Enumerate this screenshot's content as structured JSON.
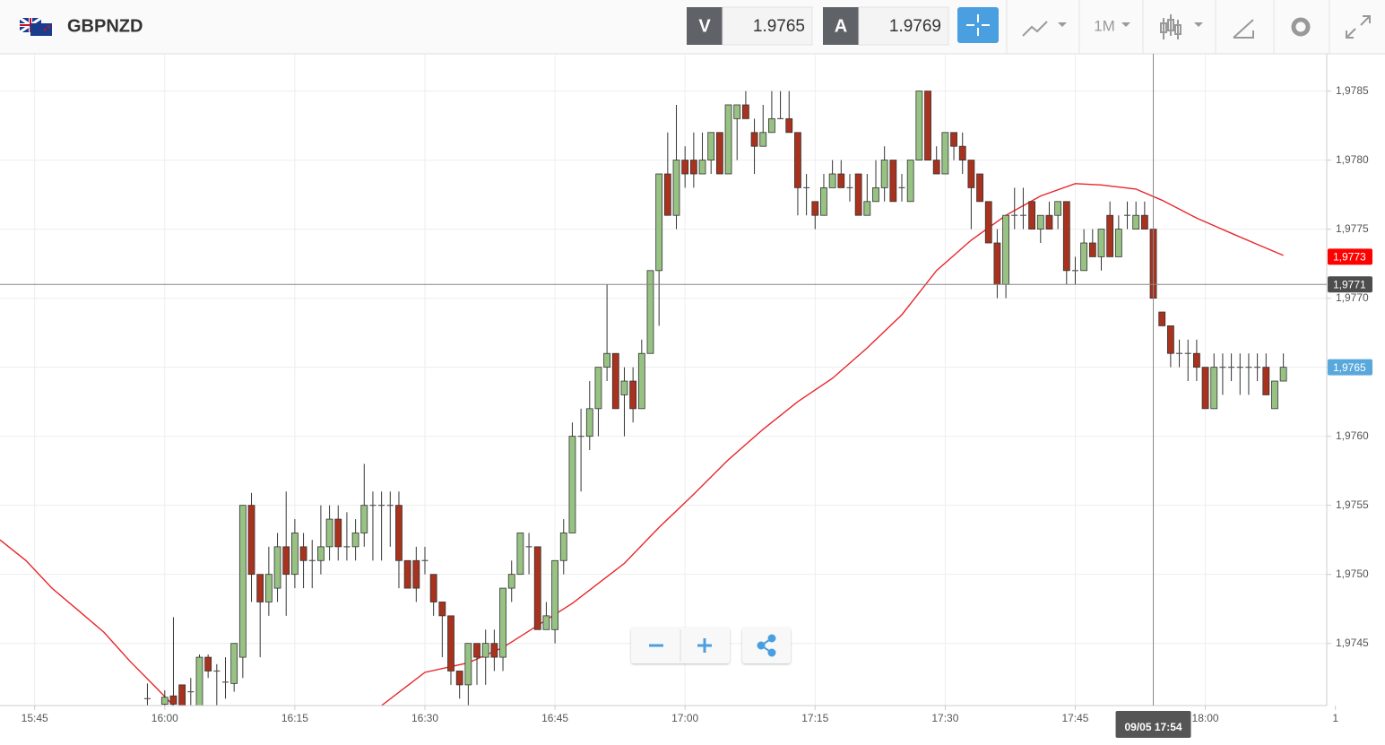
{
  "header": {
    "symbol": "GBPNZD",
    "bid_label": "V",
    "bid": 1.9765,
    "ask_label": "A",
    "ask": 1.9769,
    "timeframe": "1M"
  },
  "chart_data": {
    "type": "candlestick",
    "x": [
      "15:58",
      "16:00",
      "16:01",
      "16:02",
      "16:03",
      "16:04",
      "16:05",
      "16:06",
      "16:07",
      "16:08",
      "16:09",
      "16:10",
      "16:11",
      "16:12",
      "16:13",
      "16:14",
      "16:15",
      "16:16",
      "16:17",
      "16:18",
      "16:19",
      "16:20",
      "16:21",
      "16:22",
      "16:23",
      "16:24",
      "16:25",
      "16:26",
      "16:27",
      "16:28",
      "16:29",
      "16:30",
      "16:31",
      "16:32",
      "16:33",
      "16:34",
      "16:35",
      "16:36",
      "16:37",
      "16:38",
      "16:39",
      "16:40",
      "16:41",
      "16:42",
      "16:43",
      "16:44",
      "16:45",
      "16:46",
      "16:47",
      "16:48",
      "16:49",
      "16:50",
      "16:51",
      "16:52",
      "16:53",
      "16:54",
      "16:55",
      "16:56",
      "16:57",
      "16:58",
      "16:59",
      "17:00",
      "17:01",
      "17:02",
      "17:03",
      "17:04",
      "17:05",
      "17:06",
      "17:07",
      "17:08",
      "17:09",
      "17:10",
      "17:11",
      "17:12",
      "17:13",
      "17:14",
      "17:15",
      "17:16",
      "17:17",
      "17:18",
      "17:19",
      "17:20",
      "17:21",
      "17:22",
      "17:23",
      "17:24",
      "17:25",
      "17:26",
      "17:27",
      "17:28",
      "17:29",
      "17:30",
      "17:31",
      "17:32",
      "17:33",
      "17:34",
      "17:35",
      "17:36",
      "17:37",
      "17:38",
      "17:39",
      "17:40",
      "17:41",
      "17:42",
      "17:43",
      "17:44",
      "17:45",
      "17:46",
      "17:47",
      "17:48",
      "17:49",
      "17:50",
      "17:51",
      "17:52",
      "17:53",
      "17:54",
      "17:55",
      "17:56",
      "17:57",
      "17:58",
      "17:59",
      "18:00",
      "18:01",
      "18:02",
      "18:03",
      "18:04",
      "18:05",
      "18:06",
      "18:07",
      "18:08",
      "18:09"
    ],
    "open": [
      1.9741,
      1.97406,
      1.97412,
      1.9742,
      1.97415,
      1.97405,
      1.9744,
      1.9743,
      1.97422,
      1.97421,
      1.9744,
      1.9755,
      1.975,
      1.9748,
      1.9749,
      1.9752,
      1.975,
      1.9752,
      1.9751,
      1.9751,
      1.9752,
      1.9754,
      1.9752,
      1.9752,
      1.9753,
      1.9755,
      1.9755,
      1.9755,
      1.9755,
      1.9751,
      1.9751,
      1.9751,
      1.975,
      1.9748,
      1.9747,
      1.9743,
      1.9742,
      1.9745,
      1.9744,
      1.9745,
      1.9744,
      1.9749,
      1.975,
      1.9752,
      1.9752,
      1.9746,
      1.9746,
      1.9751,
      1.9753,
      1.976,
      1.976,
      1.9762,
      1.9765,
      1.9766,
      1.9763,
      1.9764,
      1.9762,
      1.9766,
      1.9772,
      1.9779,
      1.9776,
      1.978,
      1.978,
      1.9779,
      1.978,
      1.9782,
      1.9779,
      1.9783,
      1.9784,
      1.9782,
      1.9781,
      1.9782,
      1.9783,
      1.9783,
      1.9782,
      1.9778,
      1.9777,
      1.9776,
      1.9778,
      1.9779,
      1.9778,
      1.9779,
      1.9776,
      1.9777,
      1.9778,
      1.978,
      1.9778,
      1.9777,
      1.978,
      1.9785,
      1.978,
      1.9779,
      1.9782,
      1.9781,
      1.978,
      1.9779,
      1.9777,
      1.9774,
      1.9771,
      1.9776,
      1.9776,
      1.9777,
      1.9775,
      1.9776,
      1.9776,
      1.9777,
      1.9772,
      1.9772,
      1.9774,
      1.9773,
      1.9776,
      1.9773,
      1.9776,
      1.9775,
      1.9776,
      1.9775,
      1.9769,
      1.9768,
      1.9766,
      1.9766,
      1.9766,
      1.9765,
      1.9762,
      1.9765,
      1.9765,
      1.9765,
      1.9765,
      1.9765,
      1.9765,
      1.9762,
      1.9764
    ],
    "high": [
      1.97421,
      1.97416,
      1.97469,
      1.9742,
      1.97425,
      1.97442,
      1.97442,
      1.97435,
      1.9744,
      1.9745,
      1.9755,
      1.97559,
      1.975,
      1.9752,
      1.9753,
      1.9756,
      1.9754,
      1.9753,
      1.97525,
      1.9755,
      1.9755,
      1.9755,
      1.97545,
      1.9754,
      1.9758,
      1.9756,
      1.9756,
      1.9756,
      1.9756,
      1.9751,
      1.9752,
      1.9752,
      1.975,
      1.9748,
      1.9747,
      1.9743,
      1.9745,
      1.9745,
      1.9746,
      1.9746,
      1.9749,
      1.9751,
      1.9753,
      1.9753,
      1.9752,
      1.9748,
      1.9751,
      1.9754,
      1.9761,
      1.9762,
      1.9764,
      1.9765,
      1.9771,
      1.9766,
      1.9765,
      1.9765,
      1.9767,
      1.9772,
      1.9779,
      1.9782,
      1.9784,
      1.9781,
      1.9782,
      1.9782,
      1.9782,
      1.9782,
      1.9784,
      1.9784,
      1.9785,
      1.9783,
      1.9784,
      1.9785,
      1.9785,
      1.9785,
      1.9782,
      1.9779,
      1.9777,
      1.9779,
      1.978,
      1.978,
      1.9779,
      1.9779,
      1.9779,
      1.978,
      1.9781,
      1.978,
      1.9779,
      1.978,
      1.9785,
      1.9785,
      1.9781,
      1.9782,
      1.9782,
      1.9782,
      1.978,
      1.9779,
      1.9777,
      1.9775,
      1.9776,
      1.9778,
      1.9778,
      1.9777,
      1.9776,
      1.9777,
      1.9777,
      1.9777,
      1.9773,
      1.9775,
      1.9775,
      1.9775,
      1.9777,
      1.9776,
      1.9777,
      1.9777,
      1.9777,
      1.9775,
      1.9769,
      1.9768,
      1.9767,
      1.9767,
      1.9767,
      1.9765,
      1.9766,
      1.9766,
      1.9766,
      1.9766,
      1.9766,
      1.9766,
      1.9766,
      1.9764,
      1.9766
    ],
    "low": [
      1.97405,
      1.97405,
      1.97405,
      1.97405,
      1.97405,
      1.97405,
      1.97425,
      1.97405,
      1.9741,
      1.97415,
      1.97425,
      1.9748,
      1.9744,
      1.9747,
      1.9748,
      1.9747,
      1.9749,
      1.9749,
      1.9749,
      1.975,
      1.9751,
      1.9751,
      1.9751,
      1.9751,
      1.9752,
      1.9751,
      1.9751,
      1.9752,
      1.9749,
      1.9749,
      1.9748,
      1.975,
      1.9747,
      1.9744,
      1.9742,
      1.9741,
      1.97405,
      1.9742,
      1.9742,
      1.9743,
      1.9743,
      1.9748,
      1.975,
      1.975,
      1.9746,
      1.9746,
      1.9745,
      1.975,
      1.9753,
      1.9756,
      1.9759,
      1.976,
      1.9764,
      1.9762,
      1.976,
      1.9761,
      1.9762,
      1.9766,
      1.9768,
      1.9776,
      1.9775,
      1.9778,
      1.9778,
      1.9779,
      1.9779,
      1.9779,
      1.9779,
      1.978,
      1.9783,
      1.9779,
      1.9781,
      1.9782,
      1.9783,
      1.9782,
      1.9776,
      1.9776,
      1.9775,
      1.9776,
      1.9778,
      1.9778,
      1.9777,
      1.9776,
      1.9776,
      1.9777,
      1.9777,
      1.9777,
      1.9777,
      1.9777,
      1.978,
      1.978,
      1.9779,
      1.9779,
      1.978,
      1.9779,
      1.9775,
      1.9777,
      1.9774,
      1.977,
      1.977,
      1.9775,
      1.9775,
      1.9775,
      1.9774,
      1.9775,
      1.9775,
      1.9771,
      1.9771,
      1.9772,
      1.9773,
      1.9772,
      1.9773,
      1.9773,
      1.9775,
      1.9775,
      1.9775,
      1.977,
      1.9768,
      1.9765,
      1.9765,
      1.9764,
      1.9764,
      1.9762,
      1.9762,
      1.9763,
      1.9764,
      1.9763,
      1.9763,
      1.9764,
      1.9763,
      1.9762,
      1.9764
    ],
    "close": [
      1.9741,
      1.97411,
      1.97406,
      1.97405,
      1.97415,
      1.9744,
      1.9743,
      1.9743,
      1.97422,
      1.9745,
      1.9755,
      1.975,
      1.9748,
      1.975,
      1.9752,
      1.975,
      1.9753,
      1.9751,
      1.9751,
      1.9752,
      1.9754,
      1.9752,
      1.9752,
      1.9753,
      1.9755,
      1.9755,
      1.9755,
      1.9755,
      1.9751,
      1.9749,
      1.9749,
      1.9751,
      1.9748,
      1.9747,
      1.9743,
      1.9742,
      1.9745,
      1.9744,
      1.9745,
      1.9744,
      1.9749,
      1.975,
      1.9753,
      1.9752,
      1.9746,
      1.9747,
      1.9751,
      1.9753,
      1.976,
      1.976,
      1.9762,
      1.9765,
      1.9766,
      1.9762,
      1.9764,
      1.9762,
      1.9766,
      1.9772,
      1.9779,
      1.9776,
      1.978,
      1.9779,
      1.9779,
      1.978,
      1.9782,
      1.9779,
      1.9784,
      1.9784,
      1.9783,
      1.9781,
      1.9782,
      1.9783,
      1.9783,
      1.9782,
      1.9778,
      1.9778,
      1.9776,
      1.9778,
      1.9779,
      1.9778,
      1.9778,
      1.9776,
      1.9777,
      1.9778,
      1.978,
      1.9777,
      1.9778,
      1.978,
      1.9785,
      1.978,
      1.9779,
      1.9782,
      1.9781,
      1.978,
      1.9778,
      1.9777,
      1.9774,
      1.9771,
      1.9776,
      1.9776,
      1.9776,
      1.9775,
      1.9776,
      1.9775,
      1.9777,
      1.9772,
      1.9772,
      1.9774,
      1.9773,
      1.9775,
      1.9773,
      1.9775,
      1.9776,
      1.9776,
      1.9775,
      1.977,
      1.9768,
      1.9766,
      1.9766,
      1.9766,
      1.9765,
      1.9762,
      1.9765,
      1.9765,
      1.9765,
      1.9765,
      1.9765,
      1.9765,
      1.9763,
      1.9764,
      1.9765
    ],
    "up_color": "#97c283",
    "down_color": "#a8321e",
    "doji_color": "#555555",
    "moving_average": {
      "color": "#e8262a",
      "x": [
        "15:41",
        "15:44",
        "15:47",
        "15:50",
        "15:53",
        "15:56",
        "15:59",
        "16:01",
        "16:13",
        "16:25",
        "16:30",
        "16:35",
        "16:39",
        "16:43",
        "16:47",
        "16:53",
        "16:57",
        "17:01",
        "17:05",
        "17:09",
        "17:13",
        "17:17",
        "17:21",
        "17:25",
        "17:29",
        "17:33",
        "17:37",
        "17:41",
        "17:45",
        "17:48",
        "17:52",
        "17:55",
        "17:59",
        "18:03",
        "18:06",
        "18:09"
      ],
      "values": [
        1.97525,
        1.9751,
        1.9749,
        1.97474,
        1.97458,
        1.97437,
        1.97418,
        1.97405,
        null,
        1.97405,
        1.97429,
        1.97436,
        1.97447,
        1.97463,
        1.97479,
        1.97508,
        1.97534,
        1.97558,
        1.97583,
        1.97605,
        1.97625,
        1.97642,
        1.97664,
        1.97688,
        1.9772,
        1.97742,
        1.9776,
        1.97774,
        1.97783,
        1.97782,
        1.97779,
        1.97771,
        1.97758,
        1.97747,
        1.97739,
        1.97731
      ]
    },
    "xlim": [
      "15:41",
      "18:14"
    ],
    "xticks": [
      "15:45",
      "16:00",
      "16:15",
      "16:30",
      "16:45",
      "17:00",
      "17:15",
      "17:30",
      "17:45",
      "18:00",
      {
        "value": "18:15",
        "label": "1"
      }
    ],
    "ylim": [
      1.97405,
      1.97877
    ],
    "yticks": [
      {
        "value": 1.9745,
        "label": "1,9745"
      },
      {
        "value": 1.975,
        "label": "1,9750"
      },
      {
        "value": 1.9755,
        "label": "1,9755"
      },
      {
        "value": 1.976,
        "label": "1,9760"
      },
      {
        "value": 1.9765,
        "label": "1,9765"
      },
      {
        "value": 1.977,
        "label": "1,9770"
      },
      {
        "value": 1.9775,
        "label": "1,9775"
      },
      {
        "value": 1.978,
        "label": "1,9780"
      },
      {
        "value": 1.9785,
        "label": "1,9785"
      }
    ],
    "grid": true,
    "price_markers": [
      {
        "value": 1.9773,
        "label": "1,9773",
        "color": "#ff0000"
      },
      {
        "value": 1.9771,
        "label": "1,9771",
        "color": "#4d4d4d",
        "crosshair": true
      },
      {
        "value": 1.9765,
        "label": "1,9765",
        "color": "#58a8dc"
      }
    ],
    "crosshair": {
      "x": "17:54",
      "label": "09/05 17:54"
    }
  }
}
